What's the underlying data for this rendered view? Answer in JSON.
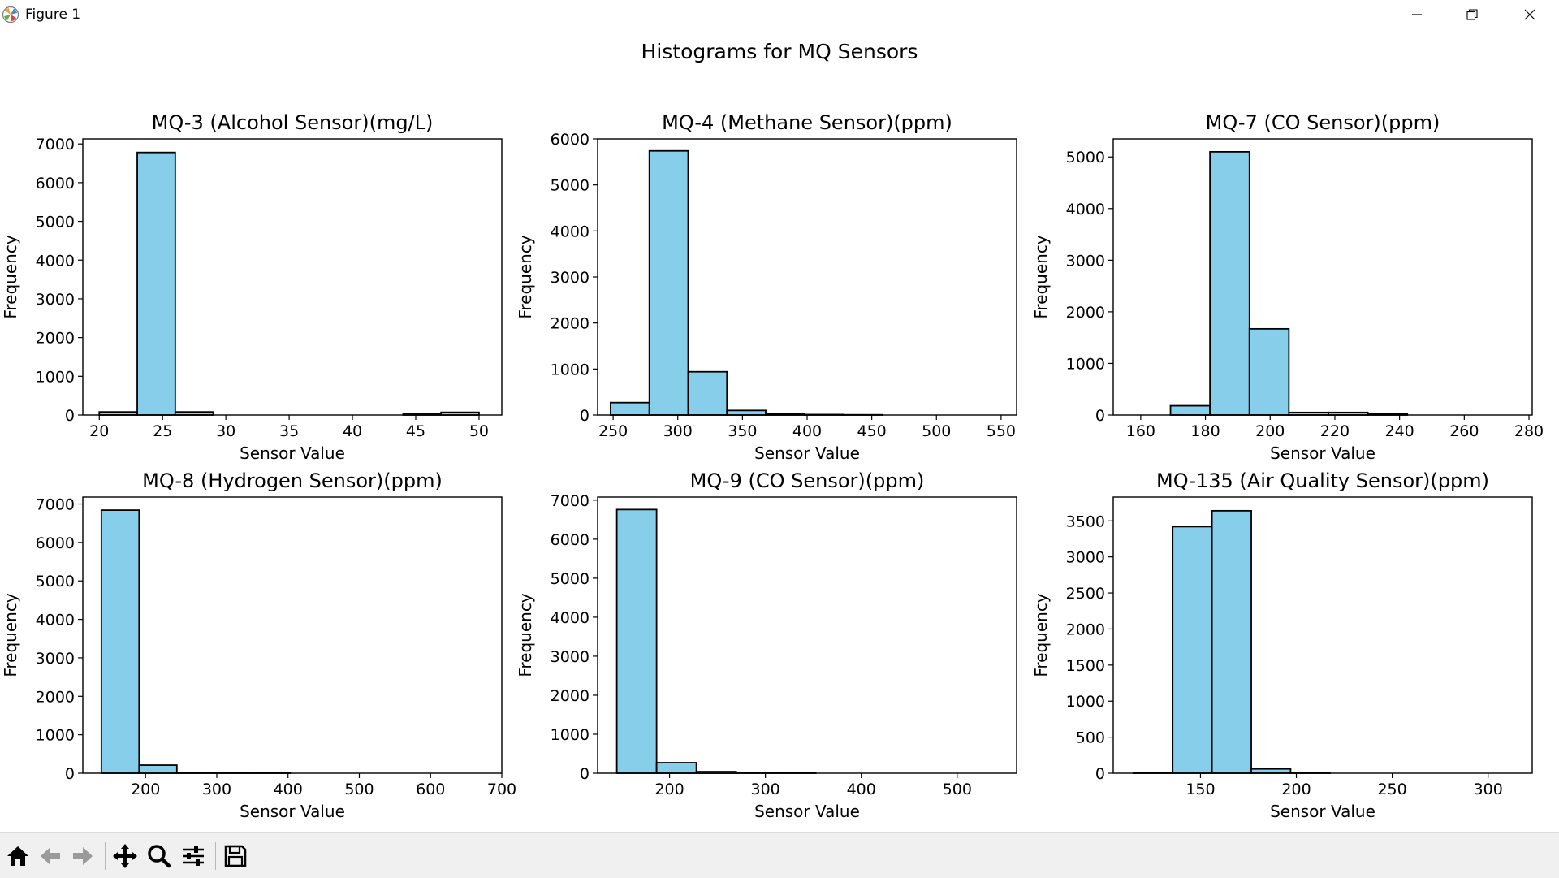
{
  "window": {
    "title": "Figure 1",
    "controls": {
      "minimize": "minimize",
      "maximize": "restore",
      "close": "close"
    }
  },
  "toolbar": {
    "buttons": [
      {
        "name": "home",
        "icon": "home-icon"
      },
      {
        "name": "back",
        "icon": "arrow-left-icon"
      },
      {
        "name": "forward",
        "icon": "arrow-right-icon"
      },
      {
        "name": "pan",
        "icon": "move-icon"
      },
      {
        "name": "zoom",
        "icon": "magnifier-icon"
      },
      {
        "name": "configure-subplots",
        "icon": "sliders-icon"
      },
      {
        "name": "save",
        "icon": "floppy-disk-icon"
      }
    ]
  },
  "colors": {
    "bar_fill": "#87ceeb",
    "bar_edge": "#000000"
  },
  "suptitle": "Histograms for MQ Sensors",
  "chart_data": [
    {
      "type": "bar",
      "title": "MQ-3 (Alcohol Sensor)(mg/L)",
      "xlabel": "Sensor Value",
      "ylabel": "Frequency",
      "xlim": [
        18.7,
        51.8
      ],
      "ylim": [
        0,
        7130
      ],
      "xticks": [
        20,
        25,
        30,
        35,
        40,
        45,
        50
      ],
      "yticks": [
        0,
        1000,
        2000,
        3000,
        4000,
        5000,
        6000,
        7000
      ],
      "bin_edges": [
        20,
        23,
        26,
        29,
        32,
        35,
        38,
        41,
        44,
        47,
        50
      ],
      "values": [
        80,
        6780,
        80,
        0,
        0,
        0,
        0,
        0,
        40,
        70
      ]
    },
    {
      "type": "bar",
      "title": "MQ-4 (Methane Sensor)(ppm)",
      "xlabel": "Sensor Value",
      "ylabel": "Frequency",
      "xlim": [
        238,
        562
      ],
      "ylim": [
        0,
        6000
      ],
      "xticks": [
        250,
        300,
        350,
        400,
        450,
        500,
        550
      ],
      "yticks": [
        0,
        1000,
        2000,
        3000,
        4000,
        5000,
        6000
      ],
      "bin_edges": [
        248,
        278,
        308,
        338,
        368,
        398,
        428,
        458,
        488,
        518,
        548
      ],
      "values": [
        270,
        5740,
        940,
        100,
        20,
        10,
        5,
        0,
        0,
        0
      ]
    },
    {
      "type": "bar",
      "title": "MQ-7 (CO Sensor)(ppm)",
      "xlabel": "Sensor Value",
      "ylabel": "Frequency",
      "xlim": [
        151.5,
        281
      ],
      "ylim": [
        0,
        5350
      ],
      "xticks": [
        160,
        180,
        200,
        220,
        240,
        260,
        280
      ],
      "yticks": [
        0,
        1000,
        2000,
        3000,
        4000,
        5000
      ],
      "bin_edges": [
        157,
        169.2,
        181.4,
        193.6,
        205.8,
        218,
        230.2,
        242.4,
        254.6,
        266.8,
        279
      ],
      "values": [
        0,
        180,
        5100,
        1670,
        50,
        50,
        20,
        0,
        0,
        0
      ]
    },
    {
      "type": "bar",
      "title": "MQ-8 (Hydrogen Sensor)(ppm)",
      "xlabel": "Sensor Value",
      "ylabel": "Frequency",
      "xlim": [
        112,
        700
      ],
      "ylim": [
        0,
        7180
      ],
      "xticks": [
        200,
        300,
        400,
        500,
        600,
        700
      ],
      "yticks": [
        0,
        1000,
        2000,
        3000,
        4000,
        5000,
        6000,
        7000
      ],
      "bin_edges": [
        138,
        191,
        244,
        297,
        350,
        403,
        456,
        509,
        562,
        615,
        668
      ],
      "values": [
        6840,
        210,
        20,
        10,
        5,
        0,
        0,
        0,
        0,
        0
      ]
    },
    {
      "type": "bar",
      "title": "MQ-9 (CO Sensor)(ppm)",
      "xlabel": "Sensor Value",
      "ylabel": "Frequency",
      "xlim": [
        125,
        562
      ],
      "ylim": [
        0,
        7080
      ],
      "xticks": [
        200,
        300,
        400,
        500
      ],
      "yticks": [
        0,
        1000,
        2000,
        3000,
        4000,
        5000,
        6000,
        7000
      ],
      "bin_edges": [
        145,
        186.5,
        228,
        269.5,
        311,
        352.5,
        394,
        435.5,
        477,
        518.5,
        560
      ],
      "values": [
        6760,
        270,
        40,
        20,
        10,
        0,
        0,
        0,
        0,
        0
      ]
    },
    {
      "type": "bar",
      "title": "MQ-135 (Air Quality Sensor)(ppm)",
      "xlabel": "Sensor Value",
      "ylabel": "Frequency",
      "xlim": [
        104.5,
        323
      ],
      "ylim": [
        0,
        3830
      ],
      "xticks": [
        150,
        200,
        250,
        300
      ],
      "yticks": [
        0,
        500,
        1000,
        1500,
        2000,
        2500,
        3000,
        3500
      ],
      "bin_edges": [
        115,
        135.5,
        156,
        176.5,
        197,
        217.5,
        238,
        258.5,
        279,
        299.5,
        320
      ],
      "values": [
        10,
        3420,
        3640,
        60,
        10,
        0,
        0,
        0,
        0,
        0
      ]
    }
  ]
}
